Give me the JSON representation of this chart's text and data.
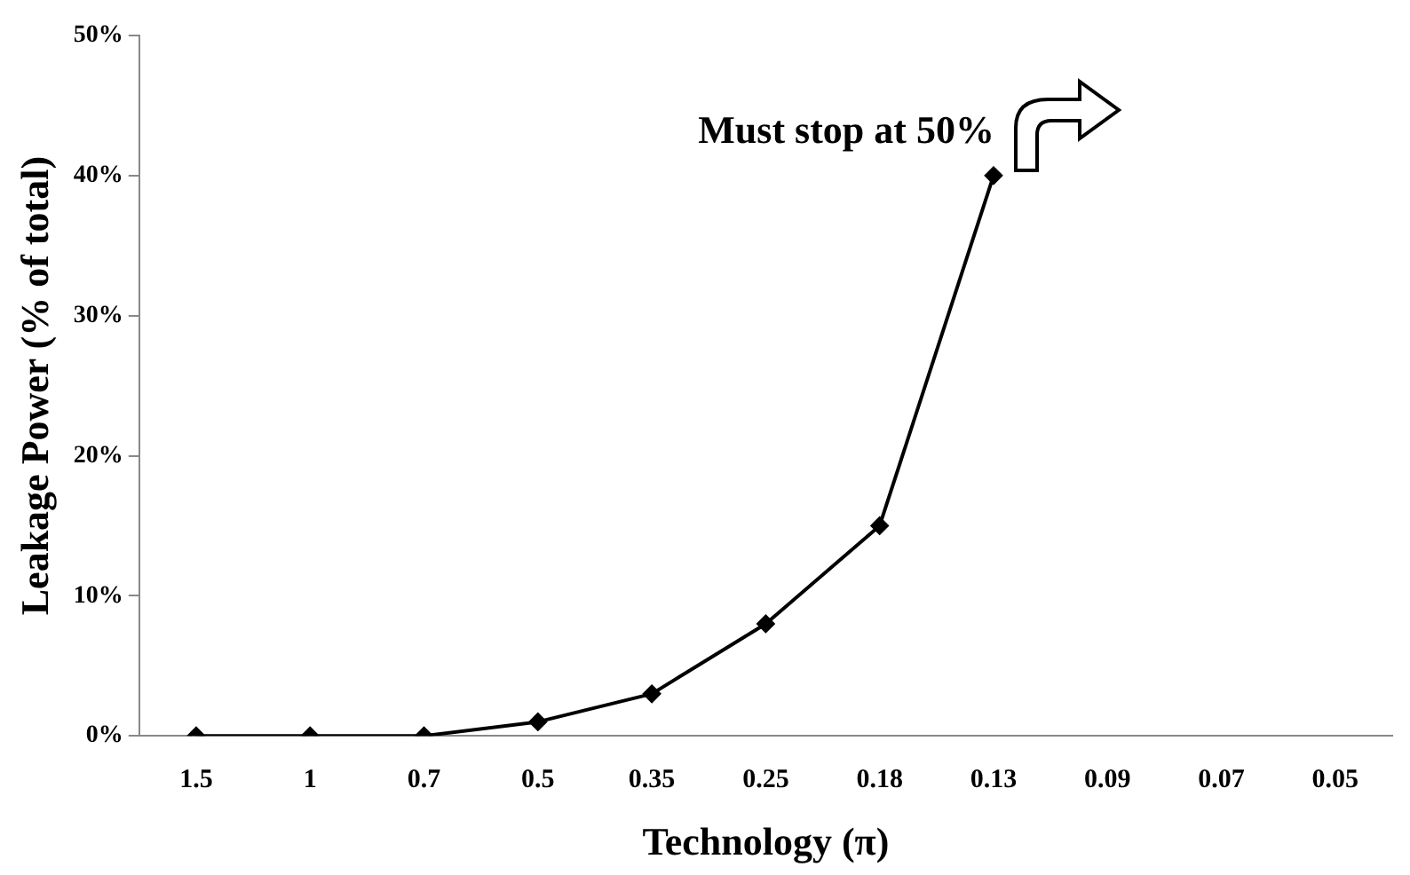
{
  "chart_data": {
    "type": "line",
    "xlabel": "Technology (π)",
    "ylabel": "Leakage Power (% of total)",
    "categories": [
      "1.5",
      "1",
      "0.7",
      "0.5",
      "0.35",
      "0.25",
      "0.18",
      "0.13",
      "0.09",
      "0.07",
      "0.05"
    ],
    "series": [
      {
        "color": "#000000",
        "values": [
          0,
          0,
          0,
          1,
          3,
          8,
          15,
          40,
          null,
          null,
          null
        ]
      }
    ],
    "ylim": [
      0,
      50
    ],
    "yticks": [
      {
        "value": 0,
        "label": "0%"
      },
      {
        "value": 10,
        "label": "10%"
      },
      {
        "value": 20,
        "label": "20%"
      },
      {
        "value": 30,
        "label": "30%"
      },
      {
        "value": 40,
        "label": "40%"
      },
      {
        "value": 50,
        "label": "50%"
      }
    ],
    "annotations": [
      "Must stop at 50%"
    ],
    "grid": false,
    "legend": false,
    "marker": "diamond",
    "line_style": "solid"
  }
}
